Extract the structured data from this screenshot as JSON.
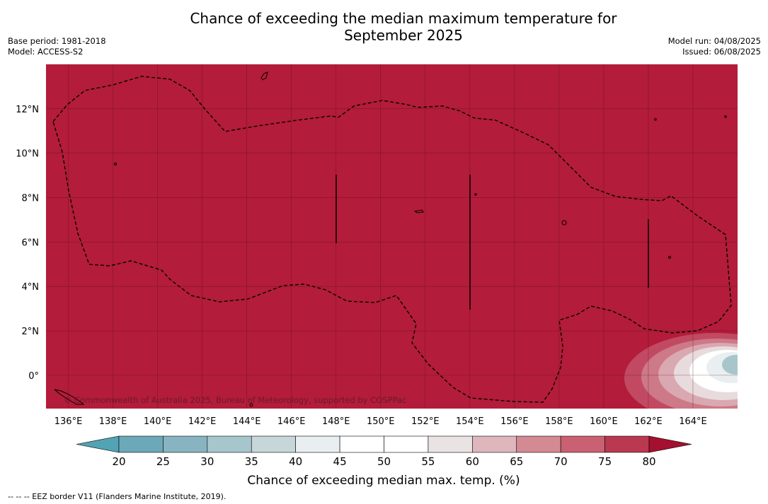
{
  "title_line1": "Chance of exceeding the median maximum temperature for",
  "title_line2": "September 2025",
  "info_left": [
    "Base period: 1981-2018",
    "Model: ACCESS-S2"
  ],
  "info_right": [
    "Model run: 04/08/2025",
    "Issued: 06/08/2025"
  ],
  "copyright": "© Commonwealth of Australia 2025, Bureau of Meteorology, supported by COSPPac",
  "map": {
    "lon_range": [
      135,
      166
    ],
    "lat_range": [
      -1.5,
      14
    ],
    "lon_ticks": [
      136,
      138,
      140,
      142,
      144,
      146,
      148,
      150,
      152,
      154,
      156,
      158,
      160,
      162,
      164
    ],
    "lon_tick_labels": [
      "136°E",
      "138°E",
      "140°E",
      "142°E",
      "144°E",
      "146°E",
      "148°E",
      "150°E",
      "152°E",
      "154°E",
      "156°E",
      "158°E",
      "160°E",
      "162°E",
      "164°E"
    ],
    "lat_ticks": [
      0,
      2,
      4,
      6,
      8,
      10,
      12
    ],
    "lat_tick_labels": [
      "0°",
      "2°N",
      "4°N",
      "6°N",
      "8°N",
      "10°N",
      "12°N"
    ],
    "background_color": "#b31c3a",
    "gridlines": true
  },
  "colorbar": {
    "title": "Chance of exceeding median max. temp. (%)",
    "ticks": [
      "20",
      "25",
      "30",
      "35",
      "40",
      "45",
      "50",
      "55",
      "60",
      "65",
      "70",
      "75",
      "80"
    ],
    "colors": [
      "#52a4b4",
      "#6ba9b9",
      "#88b4c1",
      "#a7c6cc",
      "#c6d6d9",
      "#e9eef1",
      "#ffffff",
      "#ffffff",
      "#e9e3e4",
      "#deb6bc",
      "#d38a93",
      "#c96172",
      "#ba3850",
      "#a50f30"
    ]
  },
  "footnote": "--  --  -- EEZ border V11 (Flanders Marine Institute, 2019)."
}
